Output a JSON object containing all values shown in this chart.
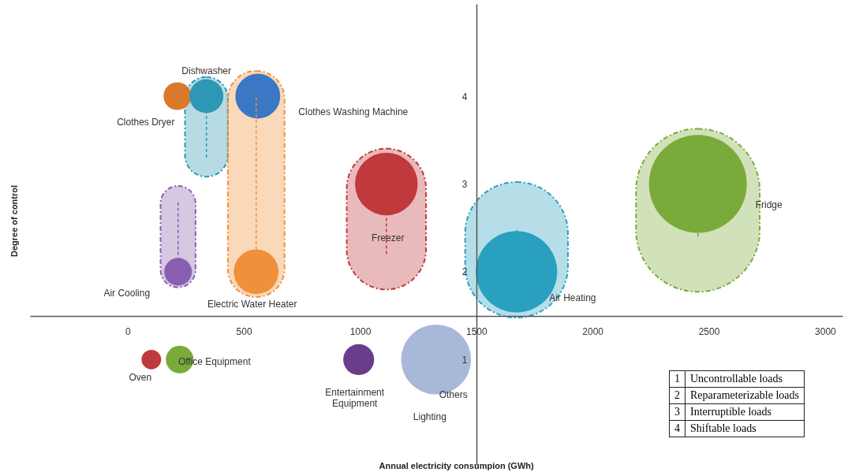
{
  "chart_data": {
    "type": "bubble",
    "xlabel": "Annual electricity consumpion (GWh)",
    "ylabel": "Degree of control",
    "xlim": [
      -420,
      3075
    ],
    "ylim": [
      -0.2,
      5.05
    ],
    "xticks": [
      0,
      500,
      1000,
      1500,
      2000,
      2500,
      3000
    ],
    "yticks": [
      1,
      2,
      3,
      4
    ],
    "grid": false,
    "series": [
      {
        "name": "Clothes Dryer",
        "color": "#d9792b",
        "x": [
          214
        ],
        "values": [
          4
        ],
        "sizes": [
          0.08
        ]
      },
      {
        "name": "Dishwasher",
        "color": "#2e97b5",
        "x": [
          339
        ],
        "values": [
          4
        ],
        "sizes": [
          0.12
        ],
        "errors": [
          [
            3.3,
            4
          ]
        ]
      },
      {
        "name": "Clothes Washing Machine",
        "color": "#3a77c4",
        "x": [
          560
        ],
        "values": [
          4
        ],
        "sizes": [
          0.21
        ]
      },
      {
        "name": "Air Cooling",
        "color": "#8a5fb0",
        "x": [
          217
        ],
        "values": [
          2
        ],
        "sizes": [
          0.08
        ],
        "errors": [
          [
            2,
            2.8
          ]
        ]
      },
      {
        "name": "Electric Water Heater",
        "color": "#f0903a",
        "x": [
          553
        ],
        "values": [
          2
        ],
        "sizes": [
          0.21
        ],
        "errors": [
          [
            2,
            4
          ]
        ]
      },
      {
        "name": "Freezer",
        "color": "#c0393b",
        "x": [
          1113
        ],
        "values": [
          3
        ],
        "sizes": [
          0.41
        ],
        "errors": [
          [
            2.2,
            3
          ]
        ]
      },
      {
        "name": "Air Heating",
        "color": "#2aa0c0",
        "x": [
          1673
        ],
        "values": [
          2
        ],
        "sizes": [
          0.69
        ],
        "errors": [
          [
            2,
            2.5
          ]
        ]
      },
      {
        "name": "Fridge",
        "color": "#7aab3a",
        "x": [
          2453
        ],
        "values": [
          3
        ],
        "sizes": [
          1
        ],
        "errors": [
          [
            2.4,
            3
          ]
        ]
      },
      {
        "name": "Oven",
        "color": "#c0393b",
        "x": [
          102
        ],
        "values": [
          1
        ],
        "sizes": [
          0.04
        ]
      },
      {
        "name": "Office Equipment",
        "color": "#7aab3a",
        "x": [
          224
        ],
        "values": [
          1
        ],
        "sizes": [
          0.08
        ]
      },
      {
        "name": "Entertainment Equipment",
        "color": "#6a3d8a",
        "x": [
          994
        ],
        "values": [
          1
        ],
        "sizes": [
          0.1
        ]
      },
      {
        "name": "Lighting",
        "color": "#a8b8d8",
        "x": [
          1327
        ],
        "values": [
          1
        ],
        "sizes": [
          0.51
        ]
      }
    ],
    "annotations": [
      "Others",
      "1 Uncontrollable loads",
      "2 Reparameterizable loads",
      "3 Interruptible loads",
      "4 Shiftable loads"
    ]
  }
}
